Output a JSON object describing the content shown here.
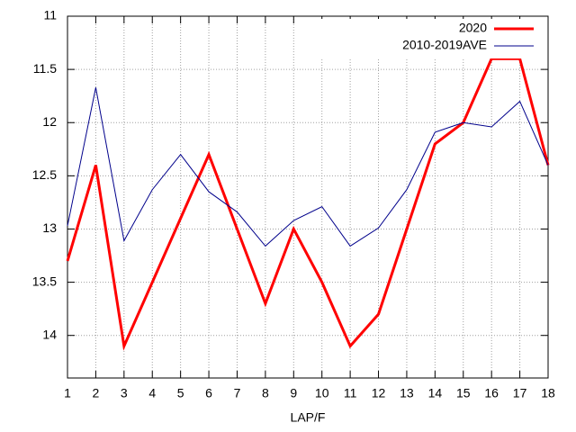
{
  "chart_data": {
    "type": "line",
    "x_label": "LAP/F",
    "x": [
      1,
      2,
      3,
      4,
      5,
      6,
      7,
      8,
      9,
      10,
      11,
      12,
      13,
      14,
      15,
      16,
      17,
      18
    ],
    "series": [
      {
        "name": "2020",
        "color": "#ff0000",
        "line_width": 3,
        "values": [
          13.3,
          12.4,
          14.1,
          13.5,
          12.9,
          12.3,
          13.0,
          13.7,
          13.0,
          13.5,
          14.1,
          13.8,
          13.0,
          12.2,
          12.0,
          11.4,
          11.4,
          12.4
        ]
      },
      {
        "name": "2010-2019AVE",
        "color": "#00008b",
        "line_width": 1,
        "values": [
          12.97,
          11.67,
          13.11,
          12.63,
          12.3,
          12.65,
          12.84,
          13.16,
          12.92,
          12.79,
          13.16,
          12.99,
          12.63,
          12.09,
          12.0,
          12.04,
          11.8,
          12.4
        ]
      }
    ],
    "xlim": [
      1,
      18
    ],
    "xticks": [
      1,
      2,
      3,
      4,
      5,
      6,
      7,
      8,
      9,
      10,
      11,
      12,
      13,
      14,
      15,
      16,
      17,
      18
    ],
    "ylim": [
      14.4,
      11
    ],
    "yticks": [
      11,
      11.5,
      12,
      12.5,
      13,
      13.5,
      14
    ],
    "grid": true,
    "legend": "top-right"
  }
}
